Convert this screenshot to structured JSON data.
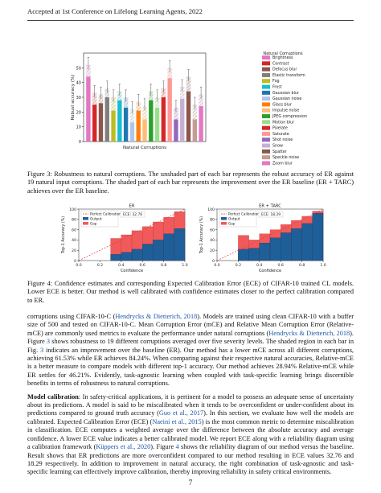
{
  "header": {
    "text": "Accepted at 1st Conference on Lifelong Learning Agents, 2022"
  },
  "fig3": {
    "chart_data": {
      "type": "bar",
      "xlabel": "Natural Corruptions",
      "ylabel": "Robust accuracy (%)",
      "ylim": [
        0,
        60
      ],
      "yticks": [
        0,
        10,
        20,
        30,
        40,
        50
      ],
      "legend_title": "Natural Corruptions",
      "legend_position": "right",
      "categories": [
        "Brightness",
        "Contrast",
        "Defocus blur",
        "Elastic transform",
        "Fog",
        "Frost",
        "Gaussian blur",
        "Gaussian noise",
        "Glass blur",
        "Impulse noise",
        "JPEG compression",
        "Motion blur",
        "Pixelate",
        "Saturate",
        "Shot noise",
        "Snow",
        "Spatter",
        "Speckle noise",
        "Zoom blur"
      ],
      "colors": [
        "#e377c2",
        "#d62728",
        "#8c564b",
        "#7f7f7f",
        "#bcbd22",
        "#17becf",
        "#1f77b4",
        "#aec7e8",
        "#ff7f0e",
        "#ffbb78",
        "#2ca02c",
        "#98df8a",
        "#d62728",
        "#ff9896",
        "#9467bd",
        "#c5b0d5",
        "#8c564b",
        "#c49c94",
        "#e377c2"
      ],
      "series": [
        {
          "name": "ER",
          "values": [
            44,
            25,
            26,
            30,
            21,
            28,
            23,
            13,
            21,
            15,
            28,
            23,
            30,
            43,
            15,
            29,
            34,
            15,
            24
          ]
        },
        {
          "name": "ER + TARC",
          "values": [
            52,
            33,
            32,
            36,
            30,
            34,
            30,
            22,
            27,
            24,
            34,
            30,
            36,
            50,
            23,
            37,
            44,
            25,
            32
          ]
        }
      ]
    },
    "caption": "Figure 3: Robustness to natural corruptions. The unshaded part of each bar represents the robust accuracy of ER against 19 natural input corruptions. The shaded part of each bar represents the improvement over the ER baseline (ER + TARC) achieves over the ER baseline."
  },
  "fig4": {
    "chart_data": [
      {
        "type": "bar",
        "title": "ER",
        "ece_label": "ECE: 32.76",
        "xlabel": "Confidence",
        "ylabel": "Top-1 Accuracy (%)",
        "legend": [
          "Perfect Calibration",
          "Output",
          "Gap"
        ],
        "categories": [
          0.1,
          0.2,
          0.3,
          0.4,
          0.5,
          0.6,
          0.7,
          0.8,
          0.9,
          1.0
        ],
        "output": [
          0,
          0,
          0,
          12,
          16,
          22,
          32,
          40,
          52,
          62
        ],
        "gap": [
          0,
          0,
          0,
          43,
          50,
          58,
          66,
          75,
          84,
          95
        ],
        "xlim": [
          0,
          1
        ],
        "ylim": [
          0,
          100
        ],
        "xticks": [
          0.0,
          0.2,
          0.4,
          0.6,
          0.8,
          1.0
        ],
        "yticks": [
          0,
          20,
          40,
          60,
          80,
          100
        ]
      },
      {
        "type": "bar",
        "title": "ER + TARC",
        "ece_label": "ECE: 18.29",
        "xlabel": "Confidence",
        "ylabel": "Top-1 Accuracy (%)",
        "legend": [
          "Perfect Calibration",
          "Output",
          "Gap"
        ],
        "categories": [
          0.1,
          0.2,
          0.3,
          0.4,
          0.5,
          0.6,
          0.7,
          0.8,
          0.9,
          1.0
        ],
        "output": [
          0,
          0,
          22,
          24,
          34,
          44,
          54,
          62,
          72,
          92
        ],
        "gap": [
          0,
          0,
          49,
          40,
          52,
          60,
          70,
          78,
          86,
          96
        ],
        "xlim": [
          0,
          1
        ],
        "ylim": [
          0,
          100
        ],
        "xticks": [
          0.0,
          0.2,
          0.4,
          0.6,
          0.8,
          1.0
        ],
        "yticks": [
          0,
          20,
          40,
          60,
          80,
          100
        ]
      }
    ],
    "caption": "Figure 4: Confidence estimates and corresponding Expected Calibration Error (ECE) of CIFAR-10 trained CL models. Lower ECE is better. Our method is well calibrated with confidence estimates closer to the perfect calibration compared to ER."
  },
  "body": {
    "p1_a": "corruptions using CIFAR-10-C (",
    "p1_cite1": "Hendrycks & Dietterich, 2018",
    "p1_b": "). Models are trained using clean CIFAR-10 with a buffer size of 500 and tested on CIFAR-10-C. Mean Corruption Error (mCE) and Relative Mean Corruption Error (Relative-mCE) are commonly used metrics to evaluate the performance under natural corruptions (",
    "p1_cite2": "Hendrycks & Dietterich, 2018",
    "p1_c": "). Figure ",
    "p1_ref": "3",
    "p1_d": " shows robustness to 19 different corruptions averaged over five severity levels. The shaded region in each bar in Fig. ",
    "p1_ref2": "3",
    "p1_e": " indicates an improvement over the baseline (ER). Our method has a lower mCE across all different corruptions, achieving 61.53% while ER achieves 84.24%. When comparing against their respective natural accuracies, Relative-mCE is a better measure to compare models with different top-1 accuracy. Our method achieves 28.94% Relative-mCE while ER settles for 46.21%. Evidently, task-agnostic learning when coupled with task-specific learning brings discernible benefits in terms of robustness to natural corruptions.",
    "p2_head": "Model calibration",
    "p2_a": ": In safety-critical applications, it is pertinent for a model to possess an adequate sense of uncertainty about its predictions. A model is said to be miscalibrated when it tends to be overconfident or under-confident about its predictions compared to ground truth accuracy (",
    "p2_cite1": "Guo et al., 2017",
    "p2_b": "). In this section, we evaluate how well the models are calibrated. Expected Calibration Error (ECE) (",
    "p2_cite2": "Naeini et al., 2015",
    "p2_c": ") is the most common metric to determine miscalibration in classification. ECE computes a weighted average over the difference between the absolute accuracy and average confidence. A lower ECE value indicates a better calibrated model. We report ECE along with a reliability diagram using a calibration framework (",
    "p2_cite3": "Küppers et al., 2020",
    "p2_d": "). Figure ",
    "p2_ref": "4",
    "p2_e": " shows the reliability diagram of our method versus the baseline. Result shows that ER predictions are more overconfident compared to our method resulting in ECE values 32.76 and 18.29 respectively. In addition to improvement in natural accuracy, the right combination of task-agnostic and task-specific learning can effectively improve calibration, thereby improving reliability in safety critical environments."
  },
  "page_number": "7"
}
